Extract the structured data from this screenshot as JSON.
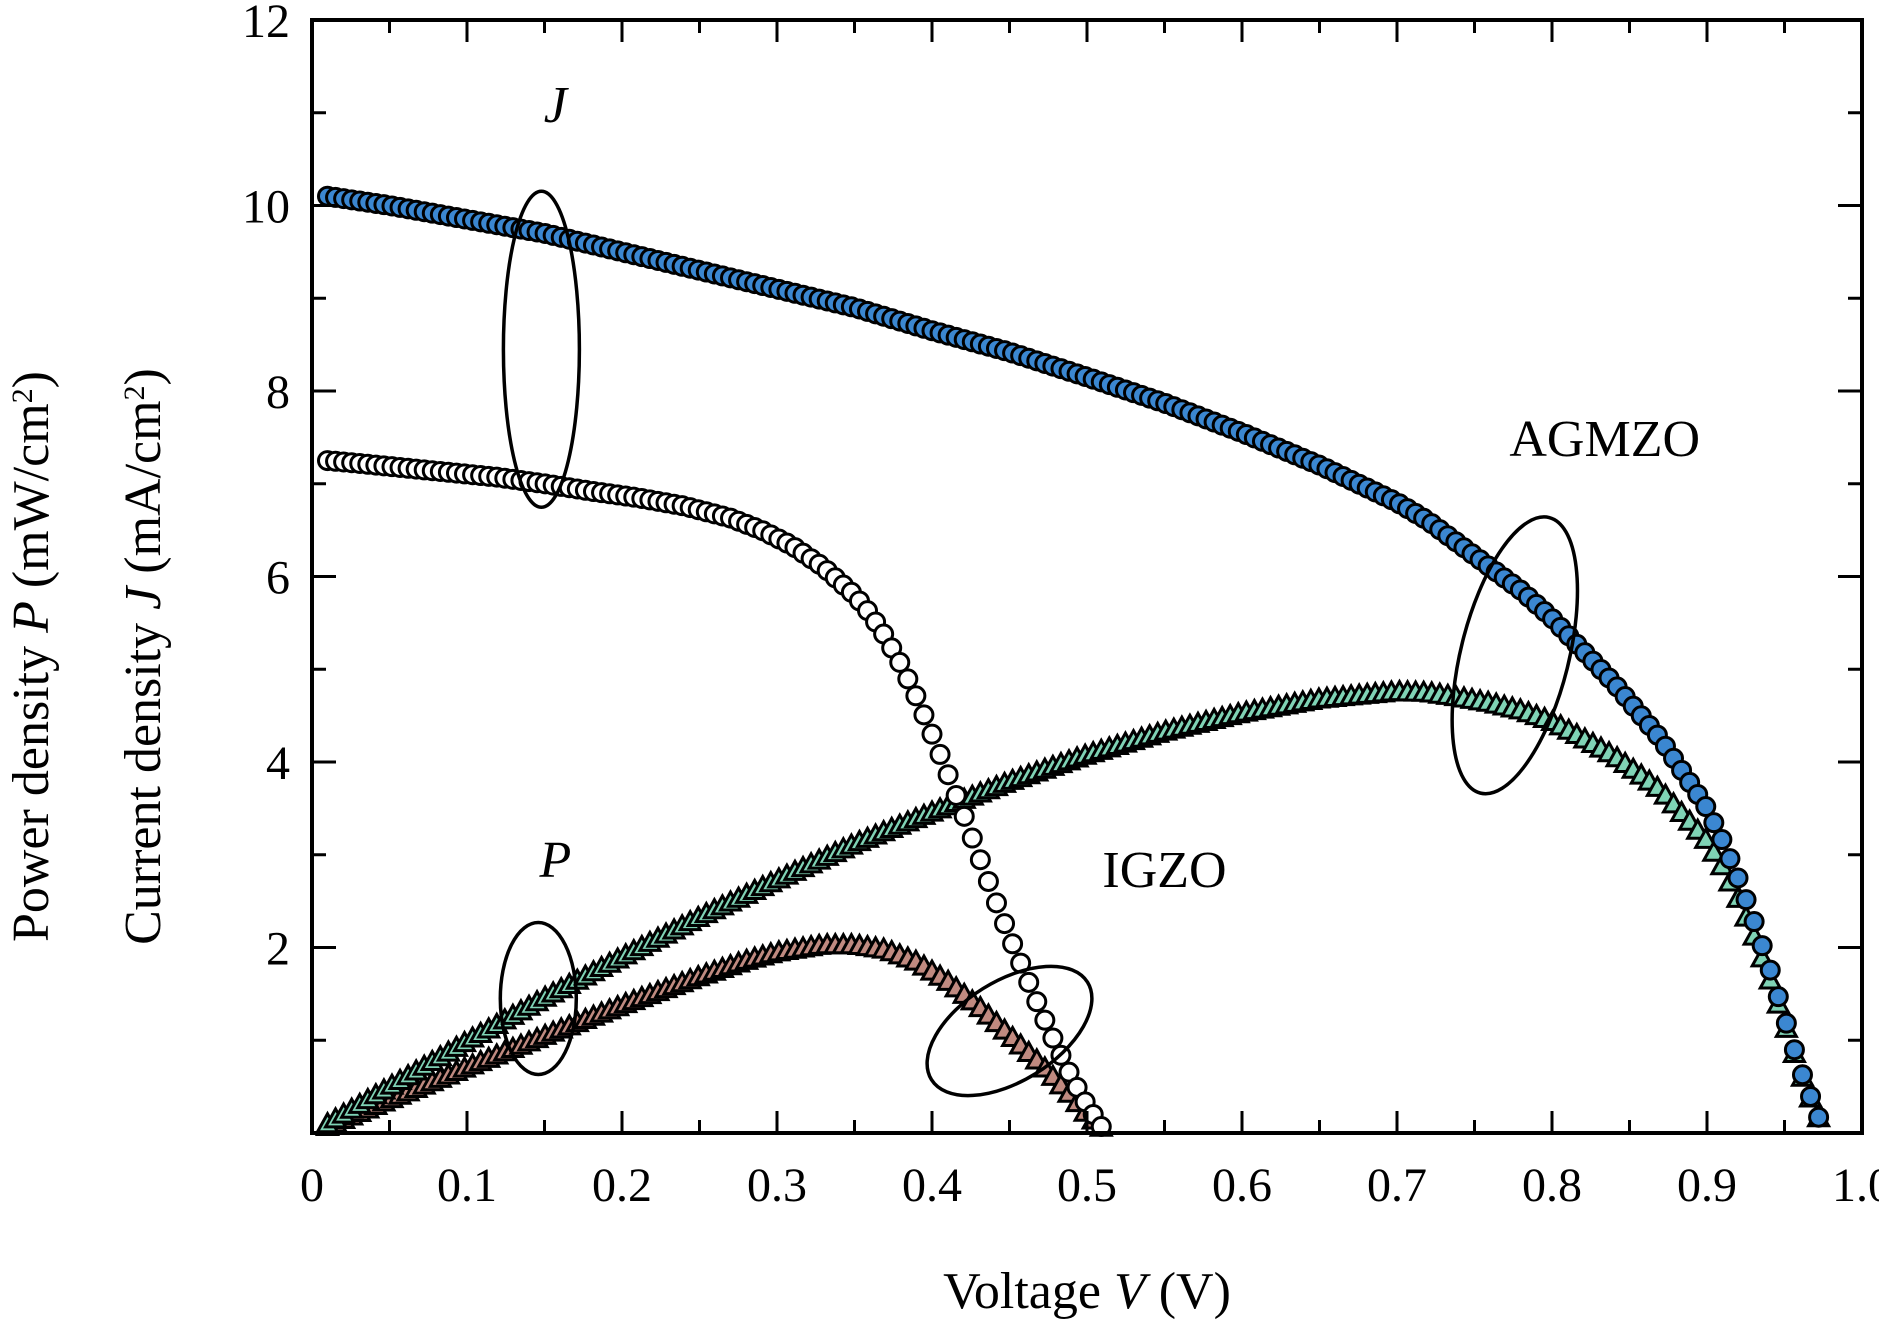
{
  "chart_data": {
    "type": "scatter",
    "title": "",
    "xlabel": {
      "prefix": "Voltage ",
      "symbol": "V",
      "suffix": " (V)"
    },
    "ylabel_lines": [
      {
        "prefix": "Power density ",
        "symbol": "P",
        "suffix": " (mW/cm",
        "sup": "2",
        "close": ")"
      },
      {
        "prefix": "Current density ",
        "symbol": "J",
        "suffix": " (mA/cm",
        "sup": "2",
        "close": ")"
      }
    ],
    "xlim": [
      0,
      1.0
    ],
    "ylim": [
      0,
      12
    ],
    "x_ticks": [
      0,
      0.1,
      0.2,
      0.3,
      0.4,
      0.5,
      0.6,
      0.7,
      0.8,
      0.9,
      1.0
    ],
    "x_tick_labels": [
      "0",
      "0.1",
      "0.2",
      "0.3",
      "0.4",
      "0.5",
      "0.6",
      "0.7",
      "0.8",
      "0.9",
      "1.0"
    ],
    "y_ticks": [
      0,
      2,
      4,
      6,
      8,
      10,
      12
    ],
    "y_tick_labels": [
      "",
      "2",
      "4",
      "6",
      "8",
      "10",
      "12"
    ],
    "grid": false,
    "legend": "none",
    "colors": {
      "agmzo_J": "#3b87d1",
      "agmzo_P": "#7fd3b5",
      "igzo_J": "#ffffff",
      "igzo_P": "#c08a80"
    },
    "series": [
      {
        "key": "agmzo_J",
        "marker": "circle",
        "x": [
          0.01,
          0.05,
          0.1,
          0.15,
          0.2,
          0.25,
          0.3,
          0.35,
          0.4,
          0.45,
          0.5,
          0.55,
          0.6,
          0.65,
          0.7,
          0.72,
          0.74,
          0.76,
          0.78,
          0.8,
          0.82,
          0.84,
          0.86,
          0.87,
          0.88,
          0.89,
          0.9,
          0.91,
          0.92,
          0.93,
          0.94,
          0.95,
          0.96,
          0.97,
          0.975
        ],
        "y": [
          10.1,
          10.0,
          9.85,
          9.7,
          9.5,
          9.3,
          9.1,
          8.9,
          8.65,
          8.42,
          8.15,
          7.87,
          7.55,
          7.2,
          6.8,
          6.6,
          6.35,
          6.1,
          5.85,
          5.55,
          5.2,
          4.85,
          4.45,
          4.25,
          4.0,
          3.75,
          3.5,
          3.15,
          2.75,
          2.3,
          1.8,
          1.25,
          0.7,
          0.25,
          0.05
        ]
      },
      {
        "key": "agmzo_P",
        "marker": "triangle",
        "x": [
          0.01,
          0.05,
          0.1,
          0.15,
          0.2,
          0.25,
          0.3,
          0.35,
          0.4,
          0.45,
          0.5,
          0.55,
          0.6,
          0.65,
          0.7,
          0.72,
          0.74,
          0.76,
          0.78,
          0.8,
          0.82,
          0.84,
          0.86,
          0.87,
          0.88,
          0.89,
          0.9,
          0.91,
          0.92,
          0.93,
          0.94,
          0.95,
          0.96,
          0.97,
          0.975
        ],
        "y": [
          0.1,
          0.5,
          0.99,
          1.46,
          1.9,
          2.33,
          2.73,
          3.12,
          3.46,
          3.79,
          4.08,
          4.33,
          4.53,
          4.68,
          4.76,
          4.75,
          4.7,
          4.64,
          4.56,
          4.44,
          4.26,
          4.07,
          3.83,
          3.7,
          3.52,
          3.34,
          3.15,
          2.87,
          2.53,
          2.14,
          1.69,
          1.19,
          0.67,
          0.24,
          0.05
        ]
      },
      {
        "key": "igzo_J",
        "marker": "circle",
        "x": [
          0.01,
          0.03,
          0.06,
          0.09,
          0.12,
          0.15,
          0.18,
          0.21,
          0.24,
          0.27,
          0.29,
          0.31,
          0.33,
          0.35,
          0.36,
          0.37,
          0.38,
          0.39,
          0.4,
          0.41,
          0.42,
          0.43,
          0.44,
          0.45,
          0.46,
          0.47,
          0.48,
          0.49,
          0.5,
          0.51
        ],
        "y": [
          7.25,
          7.22,
          7.17,
          7.12,
          7.07,
          7.0,
          6.92,
          6.85,
          6.76,
          6.63,
          6.5,
          6.33,
          6.1,
          5.8,
          5.6,
          5.35,
          5.05,
          4.7,
          4.3,
          3.88,
          3.45,
          3.0,
          2.55,
          2.12,
          1.72,
          1.32,
          0.95,
          0.6,
          0.3,
          0.05
        ]
      },
      {
        "key": "igzo_P",
        "marker": "triangle",
        "x": [
          0.01,
          0.05,
          0.1,
          0.15,
          0.2,
          0.25,
          0.28,
          0.3,
          0.33,
          0.35,
          0.37,
          0.39,
          0.41,
          0.43,
          0.45,
          0.47,
          0.49,
          0.5,
          0.51
        ],
        "y": [
          0.07,
          0.36,
          0.71,
          1.05,
          1.38,
          1.69,
          1.86,
          1.95,
          2.03,
          2.03,
          1.98,
          1.85,
          1.64,
          1.37,
          1.06,
          0.75,
          0.4,
          0.2,
          0.05
        ]
      }
    ],
    "annotations": [
      {
        "key": "label_J",
        "text": "J",
        "italic": true
      },
      {
        "key": "label_P",
        "text": "P",
        "italic": true
      },
      {
        "key": "label_AGMZO",
        "text": "AGMZO",
        "italic": false
      },
      {
        "key": "label_IGZO",
        "text": "IGZO",
        "italic": false
      }
    ]
  }
}
